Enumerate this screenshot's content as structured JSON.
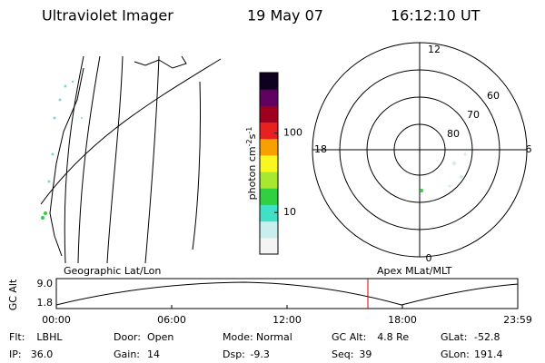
{
  "header": {
    "instrument": "Ultraviolet Imager",
    "date": "19 May 07",
    "time": "16:12:10 UT"
  },
  "map": {
    "title": "Geographic Lat/Lon"
  },
  "polar": {
    "title": "Apex MLat/MLT",
    "mlt_labels": {
      "top": "12",
      "left": "18",
      "right": "6",
      "bottom": "0"
    },
    "lat_labels": [
      "60",
      "70",
      "80"
    ]
  },
  "colorbar": {
    "label": "photon cm",
    "exp1": "-2",
    "unit2": "s",
    "exp2": "-1",
    "ticks": [
      10,
      100
    ],
    "range": [
      3,
      575
    ],
    "log": true,
    "colors": [
      "#f4f4f4",
      "#c8eeee",
      "#40e0c8",
      "#30d040",
      "#a8e830",
      "#f8f820",
      "#f8a000",
      "#e82020",
      "#a00020",
      "#600060",
      "#100020"
    ]
  },
  "altitude": {
    "ylabel": "GC Alt",
    "yticks": [
      "9.0",
      "1.8"
    ],
    "xticks": [
      "00:00",
      "06:00",
      "12:00",
      "18:00",
      "23:59"
    ]
  },
  "footer": [
    [
      {
        "label": "Flt:",
        "value": "LBHL"
      },
      {
        "label": "Door:",
        "value": "Open"
      },
      {
        "label": "Mode:",
        "value": "Normal"
      },
      {
        "label": "GC Alt:",
        "value": "4.8 Re"
      },
      {
        "label": "GLat:",
        "value": "-52.8"
      }
    ],
    [
      {
        "label": "IP:",
        "value": "36.0"
      },
      {
        "label": "Gain:",
        "value": "14"
      },
      {
        "label": "Dsp:",
        "value": "-9.3"
      },
      {
        "label": "Seq:",
        "value": "39"
      },
      {
        "label": "GLon:",
        "value": "191.4"
      }
    ]
  ]
}
